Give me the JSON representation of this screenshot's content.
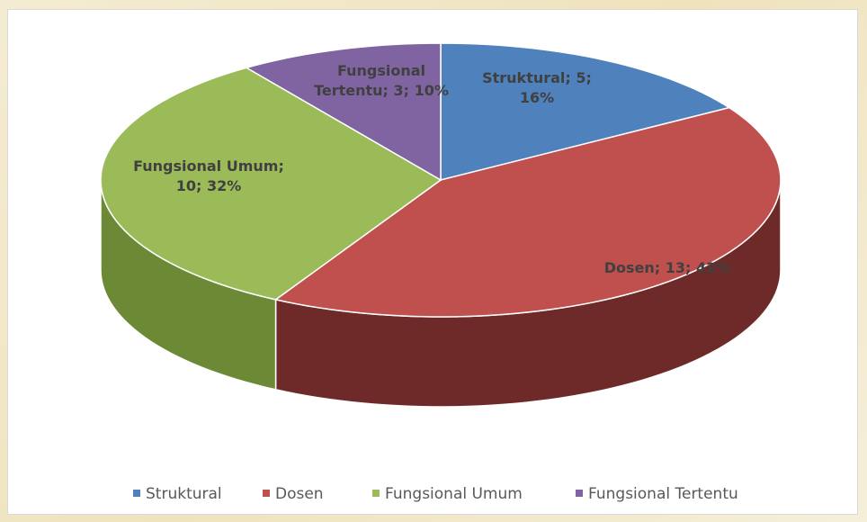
{
  "chart_data": {
    "type": "pie3d",
    "categories": [
      "Struktural",
      "Dosen",
      "Fungsional Umum",
      "Fungsional Tertentu"
    ],
    "values": [
      5,
      13,
      10,
      3
    ],
    "value_labels": [
      "Struktural; 5; 16%",
      "Dosen; 13; 42%",
      "Fungsional Umum; 10; 32%",
      "Fungsional Tertentu; 3; 10%"
    ],
    "colors": [
      "#4f81bd",
      "#c0504d",
      "#9bbb59",
      "#8064a2"
    ],
    "side_colors": [
      "#2f5584",
      "#6e2a28",
      "#6c8a36",
      "#56427a"
    ],
    "legend": "bottom"
  }
}
